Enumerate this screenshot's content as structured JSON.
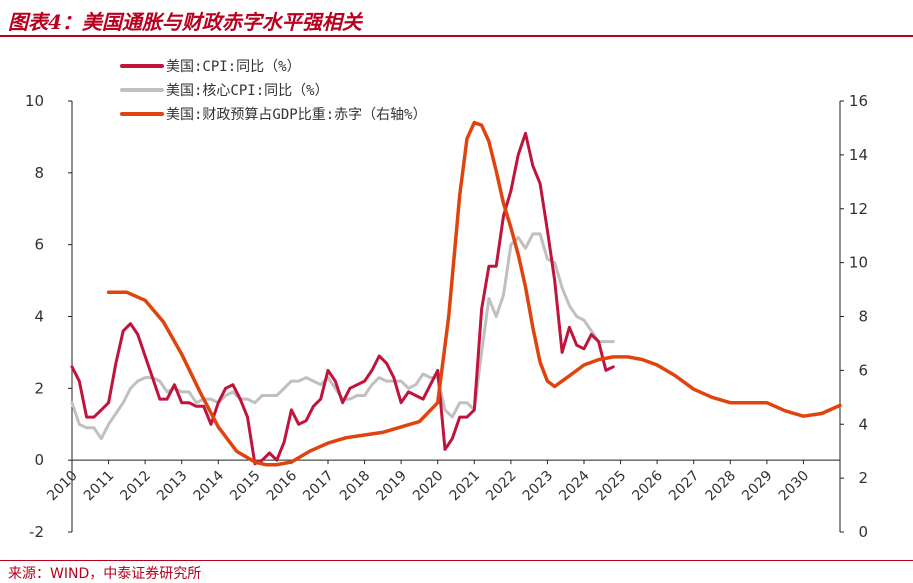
{
  "title": "图表4：美国通胀与财政赤字水平强相关",
  "source": "来源：WIND，中泰证券研究所",
  "chart_data": {
    "type": "line",
    "x_ticks": [
      "2010",
      "2011",
      "2012",
      "2013",
      "2014",
      "2015",
      "2016",
      "2017",
      "2018",
      "2019",
      "2020",
      "2021",
      "2022",
      "2023",
      "2024",
      "2025",
      "2026",
      "2027",
      "2028",
      "2029",
      "2030"
    ],
    "xlim": [
      2010,
      2031
    ],
    "left_axis": {
      "ylim": [
        -2,
        10
      ],
      "ticks": [
        "-2",
        "0",
        "2",
        "4",
        "6",
        "8",
        "10"
      ]
    },
    "right_axis": {
      "ylim": [
        0,
        16
      ],
      "ticks": [
        "0",
        "2",
        "4",
        "6",
        "8",
        "10",
        "12",
        "14",
        "16"
      ]
    },
    "series": [
      {
        "name": "美国:CPI:同比（%）",
        "axis": "left",
        "color": "#c0143c",
        "x": [
          2010.0,
          2010.2,
          2010.4,
          2010.6,
          2010.8,
          2011.0,
          2011.2,
          2011.4,
          2011.6,
          2011.8,
          2012.0,
          2012.2,
          2012.4,
          2012.6,
          2012.8,
          2013.0,
          2013.2,
          2013.4,
          2013.6,
          2013.8,
          2014.0,
          2014.2,
          2014.4,
          2014.6,
          2014.8,
          2015.0,
          2015.2,
          2015.4,
          2015.6,
          2015.8,
          2016.0,
          2016.2,
          2016.4,
          2016.6,
          2016.8,
          2017.0,
          2017.2,
          2017.4,
          2017.6,
          2017.8,
          2018.0,
          2018.2,
          2018.4,
          2018.6,
          2018.8,
          2019.0,
          2019.2,
          2019.4,
          2019.6,
          2019.8,
          2020.0,
          2020.2,
          2020.4,
          2020.6,
          2020.8,
          2021.0,
          2021.2,
          2021.4,
          2021.6,
          2021.8,
          2022.0,
          2022.2,
          2022.4,
          2022.6,
          2022.8,
          2023.0,
          2023.2,
          2023.4,
          2023.6,
          2023.8,
          2024.0,
          2024.2,
          2024.4,
          2024.6,
          2024.8
        ],
        "y": [
          2.6,
          2.2,
          1.2,
          1.2,
          1.4,
          1.6,
          2.7,
          3.6,
          3.8,
          3.5,
          2.9,
          2.3,
          1.7,
          1.7,
          2.1,
          1.6,
          1.6,
          1.5,
          1.5,
          1.0,
          1.6,
          2.0,
          2.1,
          1.7,
          1.2,
          -0.1,
          0.0,
          0.2,
          0.0,
          0.5,
          1.4,
          1.0,
          1.1,
          1.5,
          1.7,
          2.5,
          2.2,
          1.6,
          2.0,
          2.1,
          2.2,
          2.5,
          2.9,
          2.7,
          2.3,
          1.6,
          1.9,
          1.8,
          1.7,
          2.1,
          2.5,
          0.3,
          0.6,
          1.2,
          1.2,
          1.4,
          4.2,
          5.4,
          5.4,
          6.8,
          7.5,
          8.5,
          9.1,
          8.2,
          7.7,
          6.4,
          5.0,
          3.0,
          3.7,
          3.2,
          3.1,
          3.5,
          3.3,
          2.5,
          2.6
        ]
      },
      {
        "name": "美国:核心CPI:同比（%）",
        "axis": "left",
        "color": "#c0c0c0",
        "x": [
          2010.0,
          2010.2,
          2010.4,
          2010.6,
          2010.8,
          2011.0,
          2011.2,
          2011.4,
          2011.6,
          2011.8,
          2012.0,
          2012.2,
          2012.4,
          2012.6,
          2012.8,
          2013.0,
          2013.2,
          2013.4,
          2013.6,
          2013.8,
          2014.0,
          2014.2,
          2014.4,
          2014.6,
          2014.8,
          2015.0,
          2015.2,
          2015.4,
          2015.6,
          2015.8,
          2016.0,
          2016.2,
          2016.4,
          2016.6,
          2016.8,
          2017.0,
          2017.2,
          2017.4,
          2017.6,
          2017.8,
          2018.0,
          2018.2,
          2018.4,
          2018.6,
          2018.8,
          2019.0,
          2019.2,
          2019.4,
          2019.6,
          2019.8,
          2020.0,
          2020.2,
          2020.4,
          2020.6,
          2020.8,
          2021.0,
          2021.2,
          2021.4,
          2021.6,
          2021.8,
          2022.0,
          2022.2,
          2022.4,
          2022.6,
          2022.8,
          2023.0,
          2023.2,
          2023.4,
          2023.6,
          2023.8,
          2024.0,
          2024.2,
          2024.4,
          2024.6,
          2024.8
        ],
        "y": [
          1.6,
          1.0,
          0.9,
          0.9,
          0.6,
          1.0,
          1.3,
          1.6,
          2.0,
          2.2,
          2.3,
          2.3,
          2.2,
          1.9,
          2.0,
          1.9,
          1.9,
          1.6,
          1.7,
          1.7,
          1.6,
          1.8,
          1.9,
          1.7,
          1.7,
          1.6,
          1.8,
          1.8,
          1.8,
          2.0,
          2.2,
          2.2,
          2.3,
          2.2,
          2.1,
          2.3,
          2.0,
          1.7,
          1.7,
          1.8,
          1.8,
          2.1,
          2.3,
          2.2,
          2.2,
          2.2,
          2.0,
          2.1,
          2.4,
          2.3,
          2.3,
          1.4,
          1.2,
          1.6,
          1.6,
          1.4,
          3.0,
          4.5,
          4.0,
          4.6,
          6.0,
          6.2,
          5.9,
          6.3,
          6.3,
          5.6,
          5.5,
          4.8,
          4.3,
          4.0,
          3.9,
          3.6,
          3.3,
          3.3,
          3.3
        ]
      },
      {
        "name": "美国:财政预算占GDP比重:赤字（右轴%）",
        "axis": "right",
        "color": "#e0440e",
        "x": [
          2011.0,
          2011.5,
          2012.0,
          2012.5,
          2013.0,
          2013.5,
          2014.0,
          2014.5,
          2015.0,
          2015.3,
          2015.6,
          2016.0,
          2016.5,
          2017.0,
          2017.5,
          2018.0,
          2018.5,
          2019.0,
          2019.5,
          2020.0,
          2020.3,
          2020.6,
          2020.8,
          2021.0,
          2021.2,
          2021.4,
          2021.6,
          2021.8,
          2022.0,
          2022.2,
          2022.4,
          2022.6,
          2022.8,
          2023.0,
          2023.2,
          2023.4,
          2023.6,
          2024.0,
          2024.4,
          2024.8,
          2025.2,
          2025.6,
          2026.0,
          2026.5,
          2027.0,
          2027.5,
          2028.0,
          2028.5,
          2029.0,
          2029.5,
          2030.0,
          2030.5,
          2031.0
        ],
        "y": [
          8.9,
          8.9,
          8.6,
          7.8,
          6.6,
          5.2,
          3.9,
          3.0,
          2.6,
          2.5,
          2.5,
          2.6,
          3.0,
          3.3,
          3.5,
          3.6,
          3.7,
          3.9,
          4.1,
          4.8,
          8.0,
          12.5,
          14.6,
          15.2,
          15.1,
          14.5,
          13.4,
          12.2,
          11.3,
          10.3,
          9.1,
          7.6,
          6.3,
          5.6,
          5.4,
          5.6,
          5.8,
          6.2,
          6.4,
          6.5,
          6.5,
          6.4,
          6.2,
          5.8,
          5.3,
          5.0,
          4.8,
          4.8,
          4.8,
          4.5,
          4.3,
          4.4,
          4.7
        ]
      }
    ]
  }
}
